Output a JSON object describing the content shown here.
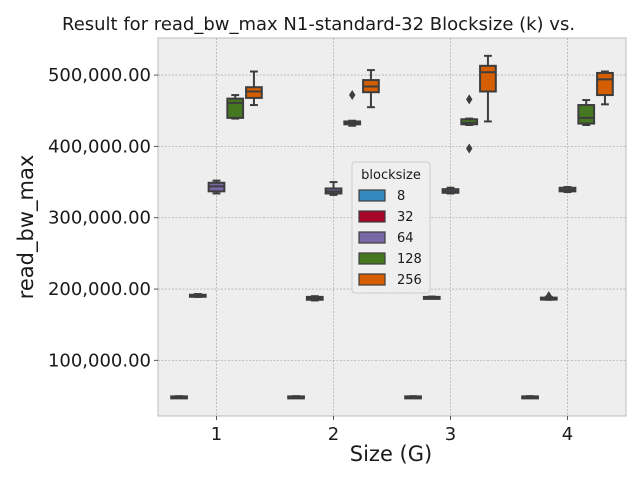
{
  "chart_data": {
    "type": "box",
    "title": "Result for read_bw_max N1-standard-32 Blocksize (k) vs.",
    "xlabel": "Size (G)",
    "ylabel": "read_bw_max",
    "categories": [
      "1",
      "2",
      "3",
      "4"
    ],
    "y_ticks": [
      100000,
      200000,
      300000,
      400000,
      500000
    ],
    "y_tick_labels": [
      "100,000.00",
      "200,000.00",
      "300,000.00",
      "400,000.00",
      "500,000.00"
    ],
    "ylim": [
      22000,
      552000
    ],
    "grid": true,
    "legend": {
      "title": "blocksize",
      "placement": "center"
    },
    "series": [
      {
        "name": "8",
        "color": "#348abd",
        "boxes": [
          {
            "whislo": 48500,
            "q1": 49000,
            "med": 49200,
            "q3": 49500,
            "whishi": 49800,
            "fliers": []
          },
          {
            "whislo": 48500,
            "q1": 49000,
            "med": 49200,
            "q3": 49500,
            "whishi": 49800,
            "fliers": []
          },
          {
            "whislo": 48500,
            "q1": 49000,
            "med": 49200,
            "q3": 49500,
            "whishi": 49800,
            "fliers": []
          },
          {
            "whislo": 48500,
            "q1": 49000,
            "med": 49200,
            "q3": 49500,
            "whishi": 49800,
            "fliers": []
          }
        ]
      },
      {
        "name": "32",
        "color": "#a60628",
        "boxes": [
          {
            "whislo": 189000,
            "q1": 189500,
            "med": 191000,
            "q3": 192000,
            "whishi": 193000,
            "fliers": []
          },
          {
            "whislo": 184000,
            "q1": 185000,
            "med": 186500,
            "q3": 189000,
            "whishi": 190000,
            "fliers": []
          },
          {
            "whislo": 187500,
            "q1": 188000,
            "med": 188500,
            "q3": 189000,
            "whishi": 189500,
            "fliers": []
          },
          {
            "whislo": 185000,
            "q1": 186000,
            "med": 187000,
            "q3": 188000,
            "whishi": 189000,
            "fliers": [
              190000
            ]
          }
        ]
      },
      {
        "name": "64",
        "color": "#7a68a6",
        "boxes": [
          {
            "whislo": 334000,
            "q1": 337000,
            "med": 344000,
            "q3": 349000,
            "whishi": 352000,
            "fliers": []
          },
          {
            "whislo": 332000,
            "q1": 334000,
            "med": 337000,
            "q3": 341000,
            "whishi": 350000,
            "fliers": []
          },
          {
            "whislo": 334000,
            "q1": 335000,
            "med": 337000,
            "q3": 340000,
            "whishi": 342000,
            "fliers": []
          },
          {
            "whislo": 336000,
            "q1": 337000,
            "med": 339000,
            "q3": 342000,
            "whishi": 343000,
            "fliers": []
          }
        ]
      },
      {
        "name": "128",
        "color": "#467821",
        "boxes": [
          {
            "whislo": 439000,
            "q1": 440000,
            "med": 461000,
            "q3": 467000,
            "whishi": 472000,
            "fliers": []
          },
          {
            "whislo": 429000,
            "q1": 431000,
            "med": 433000,
            "q3": 435000,
            "whishi": 436000,
            "fliers": [
              472000
            ]
          },
          {
            "whislo": 430000,
            "q1": 431000,
            "med": 433000,
            "q3": 438000,
            "whishi": 439000,
            "fliers": [
              466000,
              397000
            ]
          },
          {
            "whislo": 430000,
            "q1": 432000,
            "med": 440000,
            "q3": 458000,
            "whishi": 465000,
            "fliers": []
          }
        ]
      },
      {
        "name": "256",
        "color": "#d55e00",
        "boxes": [
          {
            "whislo": 458000,
            "q1": 468000,
            "med": 477000,
            "q3": 483000,
            "whishi": 505000,
            "fliers": []
          },
          {
            "whislo": 455000,
            "q1": 476000,
            "med": 484000,
            "q3": 493000,
            "whishi": 507000,
            "fliers": []
          },
          {
            "whislo": 435000,
            "q1": 477000,
            "med": 504000,
            "q3": 513000,
            "whishi": 527000,
            "fliers": []
          },
          {
            "whislo": 459000,
            "q1": 472000,
            "med": 494000,
            "q3": 503000,
            "whishi": 505000,
            "fliers": []
          }
        ]
      }
    ]
  }
}
